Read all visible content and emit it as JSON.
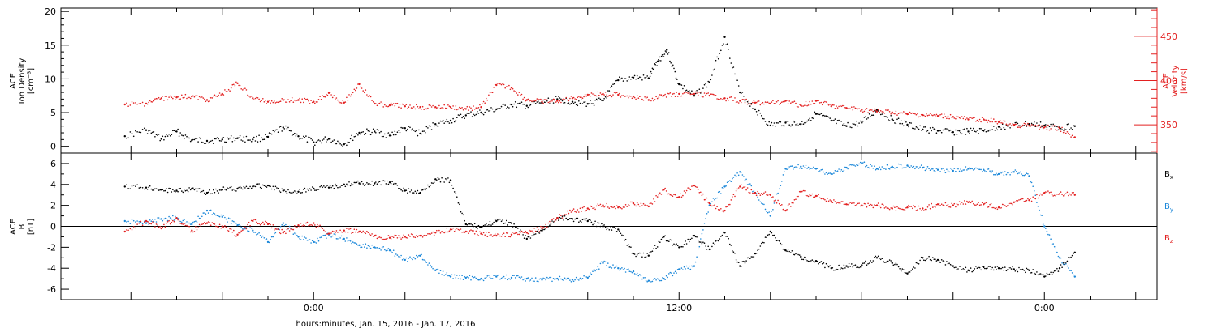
{
  "chart_data": [
    {
      "type": "scatter",
      "panel": "top",
      "ylabel": "ACE\nIon Density\n[cm⁻³]",
      "y2label": "ACE\nVelocity\n[km/s]",
      "ylim": [
        -1,
        20.5
      ],
      "y2lim": [
        318,
        482
      ],
      "yticks": [
        "0",
        "5",
        "10",
        "15",
        "20"
      ],
      "y2ticks": [
        "350",
        "400",
        "450"
      ],
      "series": [
        {
          "name": "",
          "axis": "left",
          "color": "#000000",
          "x": [
            -6.2,
            -5.5,
            -5.0,
            -4.5,
            -4.0,
            -3.5,
            -3.0,
            -2.5,
            -2.0,
            -1.5,
            -1.0,
            -0.5,
            0.0,
            0.5,
            1.0,
            1.5,
            2.0,
            2.5,
            3.0,
            3.5,
            4.0,
            4.5,
            5.0,
            5.5,
            6.0,
            6.5,
            7.0,
            7.5,
            8.0,
            8.5,
            9.0,
            9.5,
            10.0,
            10.5,
            11.0,
            11.3,
            11.6,
            12.0,
            12.5,
            13.0,
            13.5,
            14.0,
            14.5,
            15.0,
            15.5,
            16.0,
            16.5,
            17.0,
            17.5,
            18.0,
            18.5,
            19.0,
            19.5,
            20.0,
            20.5,
            21.0,
            21.5,
            22.0,
            22.5,
            23.0,
            23.5,
            24.0,
            24.5,
            25.0
          ],
          "values": [
            1.5,
            2.4,
            1.1,
            2.2,
            0.9,
            0.8,
            1.0,
            1.2,
            1.0,
            1.4,
            2.8,
            1.5,
            0.6,
            1.1,
            0.3,
            2.0,
            2.2,
            1.6,
            2.7,
            1.9,
            3.3,
            3.8,
            4.6,
            5.0,
            5.5,
            6.2,
            6.0,
            6.5,
            7.0,
            6.6,
            6.3,
            6.8,
            9.8,
            10.2,
            10.1,
            12.6,
            14.3,
            9.2,
            7.5,
            9.5,
            16.2,
            8.0,
            5.5,
            3.1,
            3.5,
            3.3,
            4.8,
            3.8,
            3.0,
            3.5,
            5.4,
            4.0,
            3.2,
            2.5,
            2.3,
            2.1,
            2.2,
            2.3,
            2.9,
            3.1,
            3.3,
            3.1,
            2.8,
            3.0
          ]
        },
        {
          "name": "",
          "axis": "right",
          "color": "#e32020",
          "x": [
            -6.2,
            -5.5,
            -5.0,
            -4.5,
            -4.0,
            -3.5,
            -3.0,
            -2.5,
            -2.0,
            -1.5,
            -1.0,
            -0.5,
            0.0,
            0.5,
            1.0,
            1.5,
            2.0,
            2.5,
            3.0,
            3.5,
            4.0,
            4.5,
            5.0,
            5.5,
            6.0,
            6.5,
            7.0,
            7.5,
            8.0,
            8.5,
            9.0,
            9.5,
            10.0,
            10.5,
            11.0,
            11.5,
            12.0,
            12.5,
            13.0,
            13.5,
            14.0,
            14.5,
            15.0,
            15.5,
            16.0,
            16.5,
            17.0,
            17.5,
            18.0,
            18.5,
            19.0,
            19.5,
            20.0,
            20.5,
            21.0,
            21.5,
            22.0,
            22.5,
            23.0,
            23.5,
            24.0,
            24.5,
            25.0
          ],
          "values": [
            373,
            374,
            380,
            381,
            382,
            378,
            385,
            397,
            380,
            376,
            378,
            378,
            376,
            386,
            375,
            396,
            374,
            372,
            371,
            370,
            370,
            370,
            368,
            370,
            395,
            392,
            378,
            376,
            377,
            380,
            384,
            385,
            384,
            382,
            378,
            383,
            385,
            385,
            383,
            380,
            377,
            375,
            374,
            377,
            372,
            377,
            371,
            369,
            367,
            365,
            364,
            362,
            361,
            360,
            359,
            356,
            356,
            353,
            350,
            349,
            347,
            346,
            336
          ]
        }
      ]
    },
    {
      "type": "scatter",
      "panel": "bottom",
      "ylabel": "ACE\nB\n[nT]",
      "ylim": [
        -7,
        7
      ],
      "yticks": [
        "-6",
        "-4",
        "-2",
        "0",
        "2",
        "4",
        "6"
      ],
      "xlabel": "hours:minutes, Jan. 15, 2016 - Jan. 17, 2016",
      "xticks": [
        "0:00",
        "12:00",
        "0:00"
      ],
      "legend_position": "right",
      "series": [
        {
          "name": "Bx",
          "color": "#000000",
          "x": [
            -6.2,
            -5.5,
            -5.0,
            -4.5,
            -4.0,
            -3.5,
            -3.0,
            -2.5,
            -2.0,
            -1.5,
            -1.0,
            -0.5,
            0.0,
            0.5,
            1.0,
            1.5,
            2.0,
            2.5,
            3.0,
            3.5,
            4.0,
            4.5,
            5.0,
            5.5,
            6.0,
            6.5,
            7.0,
            7.5,
            8.0,
            8.5,
            9.0,
            9.5,
            10.0,
            10.5,
            11.0,
            11.5,
            12.0,
            12.5,
            13.0,
            13.5,
            14.0,
            14.5,
            15.0,
            15.5,
            16.0,
            16.5,
            17.0,
            17.5,
            18.0,
            18.5,
            19.0,
            19.5,
            20.0,
            20.5,
            21.0,
            21.5,
            22.0,
            22.5,
            23.0,
            23.5,
            24.0,
            24.5,
            25.0
          ],
          "values": [
            3.8,
            3.7,
            3.5,
            3.4,
            3.6,
            3.2,
            3.5,
            3.6,
            3.8,
            3.9,
            3.4,
            3.3,
            3.6,
            3.7,
            4.0,
            4.1,
            4.1,
            4.2,
            3.4,
            3.2,
            4.5,
            4.4,
            0.2,
            -0.1,
            0.5,
            0.3,
            -1.2,
            -0.4,
            0.8,
            0.7,
            0.5,
            0.0,
            -0.3,
            -2.6,
            -2.8,
            -1.0,
            -2.0,
            -0.9,
            -2.2,
            -0.6,
            -3.8,
            -2.6,
            -0.5,
            -2.3,
            -2.9,
            -3.3,
            -4.0,
            -3.8,
            -3.7,
            -3.0,
            -3.5,
            -4.5,
            -3.0,
            -3.2,
            -3.8,
            -4.2,
            -3.9,
            -4.0,
            -4.1,
            -4.2,
            -4.8,
            -4.0,
            -2.5
          ]
        },
        {
          "name": "By",
          "color": "#1a87d9",
          "x": [
            -6.2,
            -5.5,
            -5.0,
            -4.5,
            -4.0,
            -3.5,
            -3.0,
            -2.5,
            -2.0,
            -1.5,
            -1.0,
            -0.5,
            0.0,
            0.5,
            1.0,
            1.5,
            2.0,
            2.5,
            3.0,
            3.5,
            4.0,
            4.5,
            5.0,
            5.5,
            6.0,
            6.5,
            7.0,
            7.5,
            8.0,
            8.5,
            9.0,
            9.5,
            10.0,
            10.5,
            11.0,
            11.5,
            12.0,
            12.5,
            13.0,
            13.5,
            14.0,
            14.5,
            15.0,
            15.5,
            16.0,
            16.5,
            17.0,
            17.5,
            18.0,
            18.5,
            19.0,
            19.5,
            20.0,
            20.5,
            21.0,
            21.5,
            22.0,
            22.5,
            23.0,
            23.5,
            24.0,
            24.5,
            25.0
          ],
          "values": [
            0.5,
            0.3,
            0.7,
            0.8,
            0.2,
            1.5,
            0.9,
            0.1,
            -0.4,
            -1.5,
            0.3,
            -1.0,
            -1.5,
            -0.8,
            -1.2,
            -1.8,
            -2.0,
            -2.3,
            -3.2,
            -2.8,
            -4.2,
            -4.8,
            -4.9,
            -5.0,
            -4.8,
            -4.9,
            -5.0,
            -5.1,
            -5.0,
            -5.1,
            -4.9,
            -3.5,
            -4.0,
            -4.3,
            -5.2,
            -5.0,
            -4.1,
            -3.8,
            2.0,
            3.8,
            5.2,
            3.2,
            1.0,
            5.5,
            5.7,
            5.5,
            5.0,
            5.6,
            6.0,
            5.5,
            5.7,
            5.8,
            5.6,
            5.4,
            5.3,
            5.5,
            5.4,
            5.0,
            5.2,
            4.8,
            0.0,
            -3.0,
            -4.8
          ]
        },
        {
          "name": "Bz",
          "color": "#e32020",
          "x": [
            -6.2,
            -5.5,
            -5.0,
            -4.5,
            -4.0,
            -3.5,
            -3.0,
            -2.5,
            -2.0,
            -1.5,
            -1.0,
            -0.5,
            0.0,
            0.5,
            1.0,
            1.5,
            2.0,
            2.5,
            3.0,
            3.5,
            4.0,
            4.5,
            5.0,
            5.5,
            6.0,
            6.5,
            7.0,
            7.5,
            8.0,
            8.5,
            9.0,
            9.5,
            10.0,
            10.5,
            11.0,
            11.5,
            12.0,
            12.5,
            13.0,
            13.5,
            14.0,
            14.5,
            15.0,
            15.5,
            16.0,
            16.5,
            17.0,
            17.5,
            18.0,
            18.5,
            19.0,
            19.5,
            20.0,
            20.5,
            21.0,
            21.5,
            22.0,
            22.5,
            23.0,
            23.5,
            24.0,
            24.5,
            25.0
          ],
          "values": [
            -0.5,
            0.5,
            -0.2,
            0.8,
            -0.4,
            0.3,
            0.0,
            -0.8,
            0.5,
            0.2,
            -0.6,
            0.1,
            0.3,
            -0.7,
            -0.4,
            -0.5,
            -0.9,
            -1.1,
            -1.0,
            -0.9,
            -0.6,
            -0.3,
            -0.5,
            -0.7,
            -0.9,
            -0.8,
            -0.6,
            -0.2,
            0.8,
            1.5,
            1.7,
            2.0,
            1.8,
            2.2,
            1.9,
            3.5,
            2.8,
            3.9,
            2.2,
            1.5,
            3.8,
            3.2,
            3.0,
            1.5,
            3.3,
            2.9,
            2.4,
            2.1,
            2.0,
            2.0,
            1.7,
            1.8,
            1.7,
            2.1,
            2.0,
            2.3,
            2.1,
            1.8,
            2.3,
            2.5,
            3.2,
            3.1,
            3.0
          ]
        }
      ]
    }
  ]
}
